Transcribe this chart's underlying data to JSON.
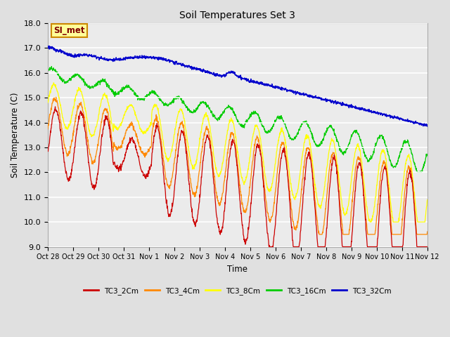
{
  "title": "Soil Temperatures Set 3",
  "xlabel": "Time",
  "ylabel": "Soil Temperature (C)",
  "ylim": [
    9.0,
    18.0
  ],
  "yticks": [
    9.0,
    10.0,
    11.0,
    12.0,
    13.0,
    14.0,
    15.0,
    16.0,
    17.0,
    18.0
  ],
  "xtick_labels": [
    "Oct 28",
    "Oct 29",
    "Oct 30",
    "Oct 31",
    "Nov 1",
    "Nov 2",
    "Nov 3",
    "Nov 4",
    "Nov 5",
    "Nov 6",
    "Nov 7",
    "Nov 8",
    "Nov 9",
    "Nov 10",
    "Nov 11",
    "Nov 12"
  ],
  "colors": {
    "TC3_2Cm": "#cc0000",
    "TC3_4Cm": "#ff8800",
    "TC3_8Cm": "#ffff00",
    "TC3_16Cm": "#00cc00",
    "TC3_32Cm": "#0000cc"
  },
  "legend_labels": [
    "TC3_2Cm",
    "TC3_4Cm",
    "TC3_8Cm",
    "TC3_16Cm",
    "TC3_32Cm"
  ],
  "background_color": "#e0e0e0",
  "plot_bg_color": "#ebebeb",
  "annotation": "SI_met",
  "annotation_color": "#800000",
  "annotation_bg": "#ffff99",
  "annotation_border": "#cc8800",
  "n_days": 15,
  "points_per_day": 96
}
